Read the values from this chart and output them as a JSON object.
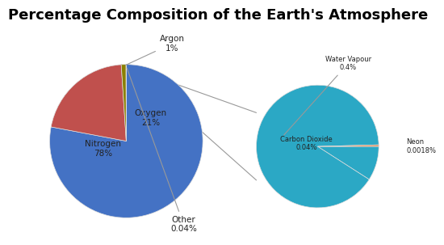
{
  "title": "Percentage Composition of the Earth's Atmosphere",
  "title_fontsize": 13,
  "title_fontweight": "bold",
  "background_color": "#ffffff",
  "main_pie_values": [
    78,
    21,
    1,
    0.04
  ],
  "main_pie_colors": [
    "#4472C4",
    "#C0504D",
    "#8B8B00",
    "#4472C4"
  ],
  "main_pie_argon_color": "#8B8B00",
  "small_pie_values": [
    0.04,
    0.4,
    0.0018
  ],
  "small_pie_colors": [
    "#2BA8C5",
    "#2BA8C5",
    "#E07B39"
  ],
  "connector_color": "#999999",
  "label_fontsize": 7.5,
  "label_color": "#222222"
}
